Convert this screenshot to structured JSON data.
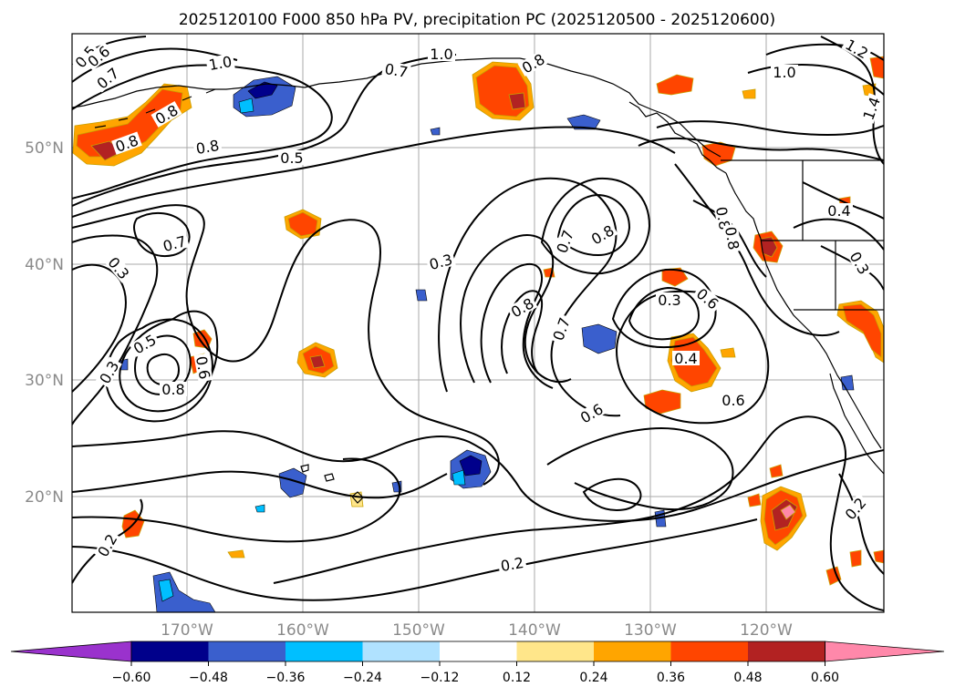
{
  "title": "2025120100 F000 850 hPa PV, precipitation PC (2025120500 - 2025120600)",
  "lat_labels": [
    "50°N",
    "40°N",
    "30°N",
    "20°N"
  ],
  "lon_labels": [
    "170°W",
    "160°W",
    "150°W",
    "140°W",
    "130°W",
    "120°W"
  ],
  "colorbar": {
    "colors": [
      "#9a32cd",
      "#00008b",
      "#3a5fcd",
      "#00bfff",
      "#b0e2ff",
      "#ffffff",
      "#ffe68a",
      "#ffa500",
      "#ff4500",
      "#b22222",
      "#ff88aa"
    ],
    "ticks": [
      "−0.60",
      "−0.48",
      "−0.36",
      "−0.24",
      "−0.12",
      "0.12",
      "0.24",
      "0.36",
      "0.48",
      "0.60"
    ]
  },
  "contour_labels": [
    {
      "text": "0.5"
    },
    {
      "text": "0.6"
    },
    {
      "text": "0.7"
    },
    {
      "text": "1.0"
    },
    {
      "text": "0.7"
    },
    {
      "text": "1.0"
    },
    {
      "text": "0.8"
    },
    {
      "text": "1.0"
    },
    {
      "text": "1.2"
    },
    {
      "text": "1.4"
    },
    {
      "text": "0.8"
    },
    {
      "text": "0.8"
    },
    {
      "text": "0.8"
    },
    {
      "text": "0.5"
    },
    {
      "text": "0.7"
    },
    {
      "text": "0.3"
    },
    {
      "text": "0.3"
    },
    {
      "text": "0.7"
    },
    {
      "text": "0.8"
    },
    {
      "text": "0.8"
    },
    {
      "text": "0.4"
    },
    {
      "text": "0.3"
    },
    {
      "text": "0.8"
    },
    {
      "text": "0.7"
    },
    {
      "text": "0.3"
    },
    {
      "text": "0.6"
    },
    {
      "text": "0.5"
    },
    {
      "text": "0.2"
    },
    {
      "text": "0.8"
    },
    {
      "text": "0.6"
    },
    {
      "text": "0.4"
    },
    {
      "text": "0.6"
    },
    {
      "text": "0.6"
    },
    {
      "text": "0.3"
    },
    {
      "text": "0.2"
    },
    {
      "text": "0.2"
    },
    {
      "text": "0.8"
    }
  ]
}
